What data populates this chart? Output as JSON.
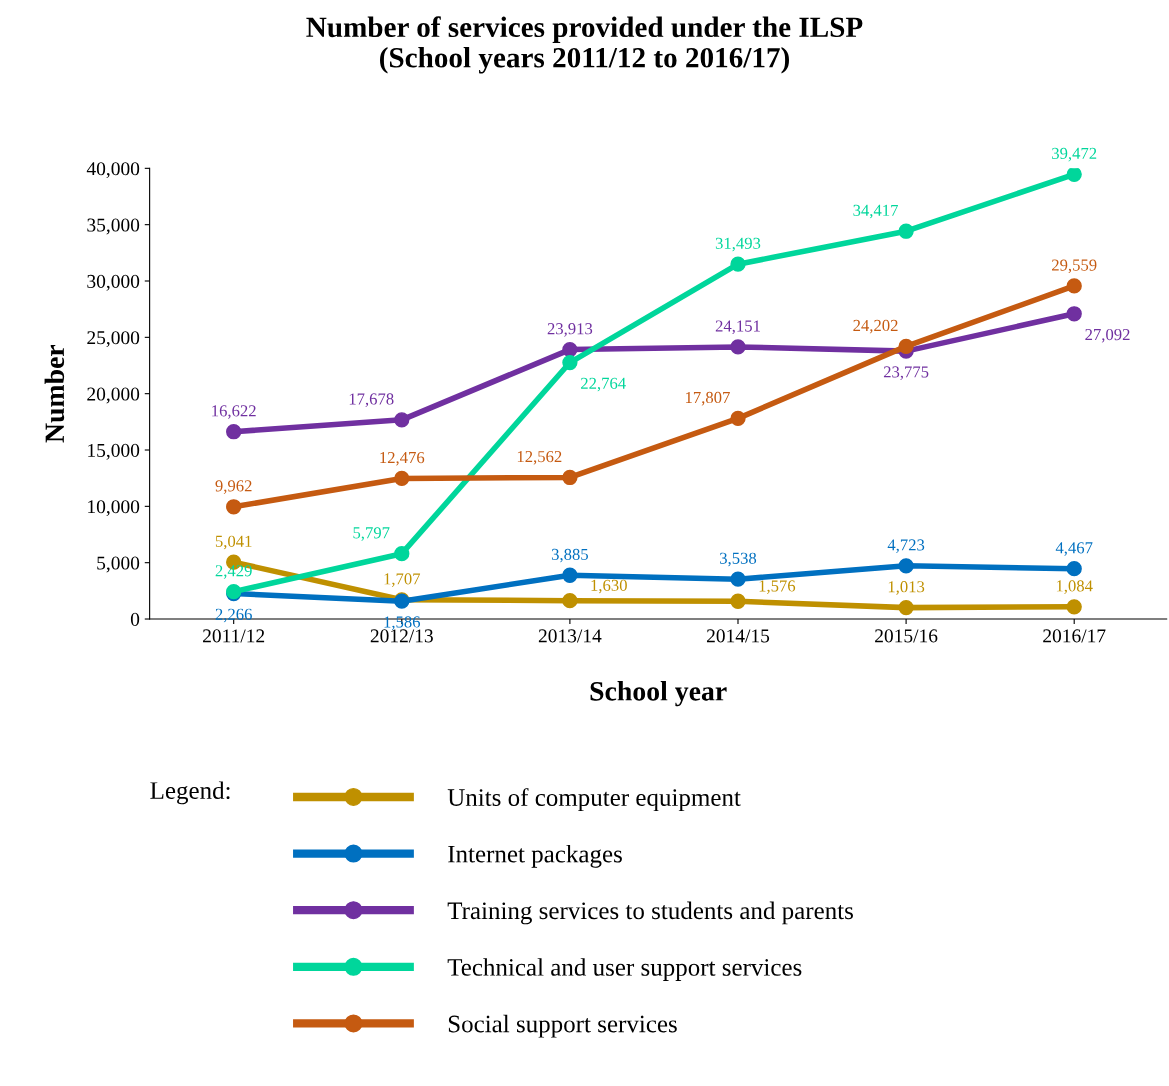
{
  "chart_data": {
    "type": "line",
    "title": "Number of services provided under the ILSP\n(School years 2011/12 to 2016/17)",
    "xlabel": "School year",
    "ylabel": "Number",
    "legend_title": "Legend:",
    "categories": [
      "2011/12",
      "2012/13",
      "2013/14",
      "2014/15",
      "2015/16",
      "2016/17"
    ],
    "series": [
      {
        "name": "Units of computer equipment",
        "color": "#bf9000",
        "values": [
          5041,
          1707,
          1630,
          1576,
          1013,
          1084
        ],
        "value_labels": [
          "5,041",
          "1,707",
          "1,630",
          "1,576",
          "1,013",
          "1,084"
        ]
      },
      {
        "name": "Internet packages",
        "color": "#0070c0",
        "values": [
          2266,
          1586,
          3885,
          3538,
          4723,
          4467
        ],
        "value_labels": [
          "2,266",
          "1,586",
          "3,885",
          "3,538",
          "4,723",
          "4,467"
        ]
      },
      {
        "name": "Training services to students and parents",
        "color": "#7030a0",
        "values": [
          16622,
          17678,
          23913,
          24151,
          23775,
          27092
        ],
        "value_labels": [
          "16,622",
          "17,678",
          "23,913",
          "24,151",
          "23,775",
          "27,092"
        ]
      },
      {
        "name": "Technical and user support services",
        "color": "#00d69b",
        "values": [
          2429,
          5797,
          22764,
          31493,
          34417,
          39472
        ],
        "value_labels": [
          "2,429",
          "5,797",
          "22,764",
          "31,493",
          "34,417",
          "39,472"
        ]
      },
      {
        "name": "Social support services",
        "color": "#c55a11",
        "values": [
          9962,
          12476,
          12562,
          17807,
          24202,
          29559
        ],
        "value_labels": [
          "9,962",
          "12,476",
          "12,562",
          "17,807",
          "24,202",
          "29,559"
        ]
      }
    ],
    "ylim": [
      0,
      40000
    ],
    "yticks": [
      0,
      {
        "value": 5000,
        "label": "5,000"
      },
      {
        "value": 10000,
        "label": "10,000"
      },
      {
        "value": 15000,
        "label": "15,000"
      },
      {
        "value": 20000,
        "label": "20,000"
      },
      {
        "value": 25000,
        "label": "25,000"
      },
      {
        "value": 30000,
        "label": "30,000"
      },
      {
        "value": 35000,
        "label": "35,000"
      },
      {
        "value": 40000,
        "label": "40,000"
      }
    ],
    "grid": false,
    "legend": "bottom",
    "marker": "circle",
    "line_style": "solid"
  }
}
